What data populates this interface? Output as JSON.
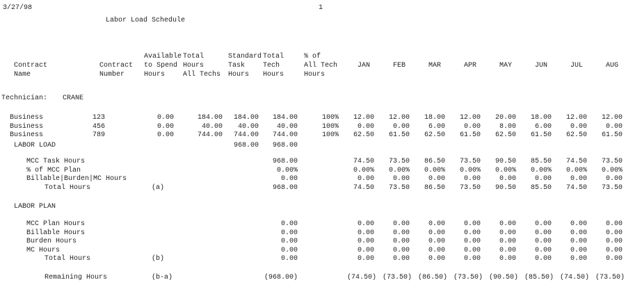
{
  "report": {
    "date": "3/27/98",
    "page_number": "1",
    "title": "Labor Load Schedule",
    "technician_label": "Technician:",
    "technician_name": "CRANE"
  },
  "columns": {
    "name": [
      "Contract",
      "Name"
    ],
    "number": [
      "Contract",
      "Number"
    ],
    "available": [
      "Available",
      "to Spend",
      "Hours"
    ],
    "total_all": [
      "Total",
      "Hours",
      "All Techs"
    ],
    "standard": [
      "Standard",
      "Task",
      "Hours"
    ],
    "total_tech": [
      "Total",
      "Tech",
      "Hours"
    ],
    "pct": [
      "% of",
      "All Tech",
      "Hours"
    ],
    "months": [
      "JAN",
      "FEB",
      "MAR",
      "APR",
      "MAY",
      "JUN",
      "JUL",
      "AUG"
    ]
  },
  "contracts": [
    {
      "name": "Business",
      "number": "123",
      "available": "0.00",
      "total_all": "184.00",
      "standard": "184.00",
      "total_tech": "184.00",
      "pct": "100%",
      "months": [
        "12.00",
        "12.00",
        "18.00",
        "12.00",
        "20.00",
        "18.00",
        "12.00",
        "12.00"
      ]
    },
    {
      "name": "Business",
      "number": "456",
      "available": "0.00",
      "total_all": "40.00",
      "standard": "40.00",
      "total_tech": "40.00",
      "pct": "100%",
      "months": [
        "0.00",
        "0.00",
        "6.00",
        "0.00",
        "8.00",
        "6.00",
        "0.00",
        "0.00"
      ]
    },
    {
      "name": "Business",
      "number": "789",
      "available": "0.00",
      "total_all": "744.00",
      "standard": "744.00",
      "total_tech": "744.00",
      "pct": "100%",
      "months": [
        "62.50",
        "61.50",
        "62.50",
        "61.50",
        "62.50",
        "61.50",
        "62.50",
        "61.50"
      ]
    }
  ],
  "labor_load": {
    "heading": "LABOR LOAD",
    "standard": "968.00",
    "total_tech": "968.00",
    "rows": [
      {
        "label": "MCC Task Hours",
        "tag": "",
        "total_tech": "968.00",
        "months": [
          "74.50",
          "73.50",
          "86.50",
          "73.50",
          "90.50",
          "85.50",
          "74.50",
          "73.50"
        ]
      },
      {
        "label": "% of MCC Plan",
        "tag": "",
        "total_tech": "0.00%",
        "months": [
          "0.00%",
          "0.00%",
          "0.00%",
          "0.00%",
          "0.00%",
          "0.00%",
          "0.00%",
          "0.00%"
        ]
      },
      {
        "label": "Billable|Burden|MC Hours",
        "tag": "",
        "total_tech": "0.00",
        "months": [
          "0.00",
          "0.00",
          "0.00",
          "0.00",
          "0.00",
          "0.00",
          "0.00",
          "0.00"
        ]
      },
      {
        "label": "Total Hours",
        "tag": "(a)",
        "total_tech": "968.00",
        "months": [
          "74.50",
          "73.50",
          "86.50",
          "73.50",
          "90.50",
          "85.50",
          "74.50",
          "73.50"
        ],
        "indent": true
      }
    ]
  },
  "labor_plan": {
    "heading": "LABOR PLAN",
    "rows": [
      {
        "label": "MCC Plan Hours",
        "tag": "",
        "total_tech": "0.00",
        "months": [
          "0.00",
          "0.00",
          "0.00",
          "0.00",
          "0.00",
          "0.00",
          "0.00",
          "0.00"
        ]
      },
      {
        "label": "Billable Hours",
        "tag": "",
        "total_tech": "0.00",
        "months": [
          "0.00",
          "0.00",
          "0.00",
          "0.00",
          "0.00",
          "0.00",
          "0.00",
          "0.00"
        ]
      },
      {
        "label": "Burden Hours",
        "tag": "",
        "total_tech": "0.00",
        "months": [
          "0.00",
          "0.00",
          "0.00",
          "0.00",
          "0.00",
          "0.00",
          "0.00",
          "0.00"
        ]
      },
      {
        "label": "MC Hours",
        "tag": "",
        "total_tech": "0.00",
        "months": [
          "0.00",
          "0.00",
          "0.00",
          "0.00",
          "0.00",
          "0.00",
          "0.00",
          "0.00"
        ]
      },
      {
        "label": "Total Hours",
        "tag": "(b)",
        "total_tech": "0.00",
        "months": [
          "0.00",
          "0.00",
          "0.00",
          "0.00",
          "0.00",
          "0.00",
          "0.00",
          "0.00"
        ],
        "indent": true
      }
    ]
  },
  "remaining": {
    "label": "Remaining Hours",
    "tag": "(b-a)",
    "total_tech": "(968.00)",
    "months": [
      "(74.50)",
      "(73.50)",
      "(86.50)",
      "(73.50)",
      "(90.50)",
      "(85.50)",
      "(74.50)",
      "(73.50)"
    ]
  }
}
